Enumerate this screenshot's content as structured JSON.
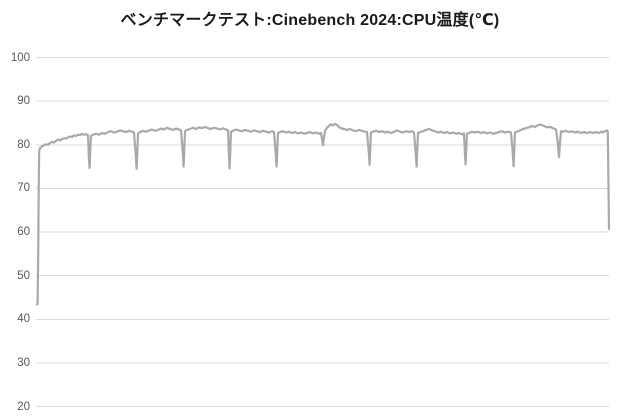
{
  "window": {
    "background": "#ffffff"
  },
  "chart_data": {
    "type": "line",
    "title": "ベンチマークテスト:Cinebench 2024:CPU温度(℃)",
    "subtitle": "",
    "legend": "none",
    "grid": "horizontal",
    "y_axis": {
      "min": 20,
      "max": 100,
      "ticks": [
        100,
        90,
        80,
        70,
        60,
        50,
        40,
        30,
        20
      ]
    },
    "x_axis": {
      "visible": false,
      "domain_max": 572
    },
    "colors": {
      "line": "#a9a9a9",
      "grid": "#d9d9d9",
      "tick_label": "#595959",
      "title": "#1a1a1a"
    },
    "series": [
      {
        "name": "CPU温度(℃)",
        "points": [
          [
            0,
            43.4
          ],
          [
            0.6,
            43.5
          ],
          [
            1.2,
            55
          ],
          [
            1.7,
            70
          ],
          [
            2.2,
            78.6
          ],
          [
            3,
            79.2
          ],
          [
            5,
            79.6
          ],
          [
            7,
            79.9
          ],
          [
            9,
            80.1
          ],
          [
            11,
            80.0
          ],
          [
            13,
            80.4
          ],
          [
            15,
            80.7
          ],
          [
            17,
            80.5
          ],
          [
            19,
            80.9
          ],
          [
            21,
            81.2
          ],
          [
            23,
            81.0
          ],
          [
            25,
            81.3
          ],
          [
            27,
            81.5
          ],
          [
            29,
            81.4
          ],
          [
            31,
            81.7
          ],
          [
            33,
            81.9
          ],
          [
            35,
            81.8
          ],
          [
            37,
            82.1
          ],
          [
            39,
            82.0
          ],
          [
            41,
            82.3
          ],
          [
            43,
            82.2
          ],
          [
            45,
            82.5
          ],
          [
            47,
            82.3
          ],
          [
            49,
            82.4
          ],
          [
            51,
            82.2
          ],
          [
            52,
            76.5
          ],
          [
            52.6,
            74.7
          ],
          [
            53.2,
            78.5
          ],
          [
            54,
            82.0
          ],
          [
            56,
            82.3
          ],
          [
            59,
            82.5
          ],
          [
            62,
            82.3
          ],
          [
            65,
            82.7
          ],
          [
            68,
            82.5
          ],
          [
            71,
            82.9
          ],
          [
            74,
            83.1
          ],
          [
            77,
            82.8
          ],
          [
            80,
            83.0
          ],
          [
            83,
            83.3
          ],
          [
            86,
            83.1
          ],
          [
            89,
            82.9
          ],
          [
            92,
            83.2
          ],
          [
            95,
            83.0
          ],
          [
            97,
            82.8
          ],
          [
            99,
            77.0
          ],
          [
            99.6,
            74.5
          ],
          [
            100.3,
            78.0
          ],
          [
            101,
            82.6
          ],
          [
            103,
            82.9
          ],
          [
            106,
            83.2
          ],
          [
            109,
            83.0
          ],
          [
            112,
            83.3
          ],
          [
            115,
            83.5
          ],
          [
            118,
            83.2
          ],
          [
            121,
            83.4
          ],
          [
            124,
            83.7
          ],
          [
            127,
            83.5
          ],
          [
            130,
            83.9
          ],
          [
            133,
            83.6
          ],
          [
            136,
            83.4
          ],
          [
            139,
            83.7
          ],
          [
            142,
            83.5
          ],
          [
            144,
            83.3
          ],
          [
            146,
            77.5
          ],
          [
            146.6,
            75.0
          ],
          [
            147.3,
            79.0
          ],
          [
            148,
            83.1
          ],
          [
            150,
            83.4
          ],
          [
            153,
            83.6
          ],
          [
            156,
            83.9
          ],
          [
            159,
            83.6
          ],
          [
            162,
            84.0
          ],
          [
            165,
            83.8
          ],
          [
            168,
            84.1
          ],
          [
            171,
            83.8
          ],
          [
            174,
            83.6
          ],
          [
            177,
            83.9
          ],
          [
            180,
            83.7
          ],
          [
            183,
            83.5
          ],
          [
            186,
            83.8
          ],
          [
            189,
            83.5
          ],
          [
            191,
            83.3
          ],
          [
            192,
            77.5
          ],
          [
            192.6,
            74.6
          ],
          [
            193.3,
            78.5
          ],
          [
            194,
            83.0
          ],
          [
            196,
            83.2
          ],
          [
            199,
            83.5
          ],
          [
            202,
            83.3
          ],
          [
            205,
            83.1
          ],
          [
            208,
            83.4
          ],
          [
            211,
            83.2
          ],
          [
            214,
            83.0
          ],
          [
            217,
            83.3
          ],
          [
            220,
            83.1
          ],
          [
            223,
            82.9
          ],
          [
            226,
            83.2
          ],
          [
            229,
            83.0
          ],
          [
            232,
            82.8
          ],
          [
            235,
            83.1
          ],
          [
            237,
            82.9
          ],
          [
            239,
            77.2
          ],
          [
            239.6,
            75.0
          ],
          [
            240.3,
            79.0
          ],
          [
            241,
            82.7
          ],
          [
            243,
            82.9
          ],
          [
            246,
            83.1
          ],
          [
            249,
            82.8
          ],
          [
            252,
            83.0
          ],
          [
            255,
            82.7
          ],
          [
            258,
            82.9
          ],
          [
            261,
            82.6
          ],
          [
            264,
            82.8
          ],
          [
            267,
            82.5
          ],
          [
            270,
            82.7
          ],
          [
            273,
            82.9
          ],
          [
            276,
            82.6
          ],
          [
            279,
            82.8
          ],
          [
            282,
            82.5
          ],
          [
            284,
            82.7
          ],
          [
            286,
            79.9
          ],
          [
            287,
            81.8
          ],
          [
            288,
            83.2
          ],
          [
            290,
            83.9
          ],
          [
            292,
            84.3
          ],
          [
            294,
            84.7
          ],
          [
            296,
            84.4
          ],
          [
            298,
            84.8
          ],
          [
            300,
            84.5
          ],
          [
            302,
            84.1
          ],
          [
            304,
            83.8
          ],
          [
            307,
            83.6
          ],
          [
            310,
            83.4
          ],
          [
            313,
            83.6
          ],
          [
            316,
            83.3
          ],
          [
            319,
            83.1
          ],
          [
            322,
            83.4
          ],
          [
            325,
            83.2
          ],
          [
            328,
            83.0
          ],
          [
            330,
            82.9
          ],
          [
            332,
            77.8
          ],
          [
            332.6,
            75.4
          ],
          [
            333.3,
            79.0
          ],
          [
            334,
            82.8
          ],
          [
            336,
            83.0
          ],
          [
            339,
            83.2
          ],
          [
            342,
            82.9
          ],
          [
            345,
            83.1
          ],
          [
            348,
            82.8
          ],
          [
            351,
            83.0
          ],
          [
            354,
            82.7
          ],
          [
            357,
            83.0
          ],
          [
            360,
            83.3
          ],
          [
            363,
            83.0
          ],
          [
            366,
            82.8
          ],
          [
            369,
            83.1
          ],
          [
            372,
            82.9
          ],
          [
            375,
            83.1
          ],
          [
            377,
            82.8
          ],
          [
            379,
            77.3
          ],
          [
            379.6,
            75.0
          ],
          [
            380.3,
            79.0
          ],
          [
            381,
            82.7
          ],
          [
            383,
            82.9
          ],
          [
            386,
            83.1
          ],
          [
            389,
            83.4
          ],
          [
            392,
            83.6
          ],
          [
            395,
            83.3
          ],
          [
            398,
            83.1
          ],
          [
            401,
            82.8
          ],
          [
            404,
            83.0
          ],
          [
            407,
            82.7
          ],
          [
            410,
            82.9
          ],
          [
            413,
            82.6
          ],
          [
            416,
            82.8
          ],
          [
            419,
            82.5
          ],
          [
            422,
            82.7
          ],
          [
            425,
            82.4
          ],
          [
            427,
            82.6
          ],
          [
            428,
            77.6
          ],
          [
            428.6,
            75.5
          ],
          [
            429.3,
            79.0
          ],
          [
            430,
            82.5
          ],
          [
            432,
            82.7
          ],
          [
            435,
            83.0
          ],
          [
            438,
            82.8
          ],
          [
            441,
            83.0
          ],
          [
            444,
            82.7
          ],
          [
            447,
            82.9
          ],
          [
            450,
            82.6
          ],
          [
            453,
            82.8
          ],
          [
            456,
            82.5
          ],
          [
            459,
            82.7
          ],
          [
            462,
            82.9
          ],
          [
            465,
            83.1
          ],
          [
            468,
            82.8
          ],
          [
            471,
            83.0
          ],
          [
            474,
            82.8
          ],
          [
            476,
            77.4
          ],
          [
            476.6,
            75.1
          ],
          [
            477.3,
            79.0
          ],
          [
            478,
            82.8
          ],
          [
            480,
            83.0
          ],
          [
            483,
            83.3
          ],
          [
            486,
            83.6
          ],
          [
            489,
            83.8
          ],
          [
            492,
            84.0
          ],
          [
            495,
            84.3
          ],
          [
            498,
            84.1
          ],
          [
            501,
            84.5
          ],
          [
            504,
            84.6
          ],
          [
            507,
            84.3
          ],
          [
            510,
            84.0
          ],
          [
            513,
            84.1
          ],
          [
            516,
            83.8
          ],
          [
            519,
            83.5
          ],
          [
            521,
            80.0
          ],
          [
            522,
            77.2
          ],
          [
            523,
            80.5
          ],
          [
            524,
            83.1
          ],
          [
            526,
            83.0
          ],
          [
            529,
            83.2
          ],
          [
            532,
            82.9
          ],
          [
            535,
            83.1
          ],
          [
            538,
            82.8
          ],
          [
            541,
            83.0
          ],
          [
            544,
            82.7
          ],
          [
            547,
            82.9
          ],
          [
            550,
            82.7
          ],
          [
            553,
            82.9
          ],
          [
            556,
            82.7
          ],
          [
            559,
            82.9
          ],
          [
            562,
            82.7
          ],
          [
            564,
            83.0
          ],
          [
            566,
            82.8
          ],
          [
            568,
            83.1
          ],
          [
            570,
            83.3
          ],
          [
            570.8,
            83.0
          ],
          [
            571.4,
            72.0
          ],
          [
            572,
            60.7
          ]
        ]
      }
    ]
  }
}
